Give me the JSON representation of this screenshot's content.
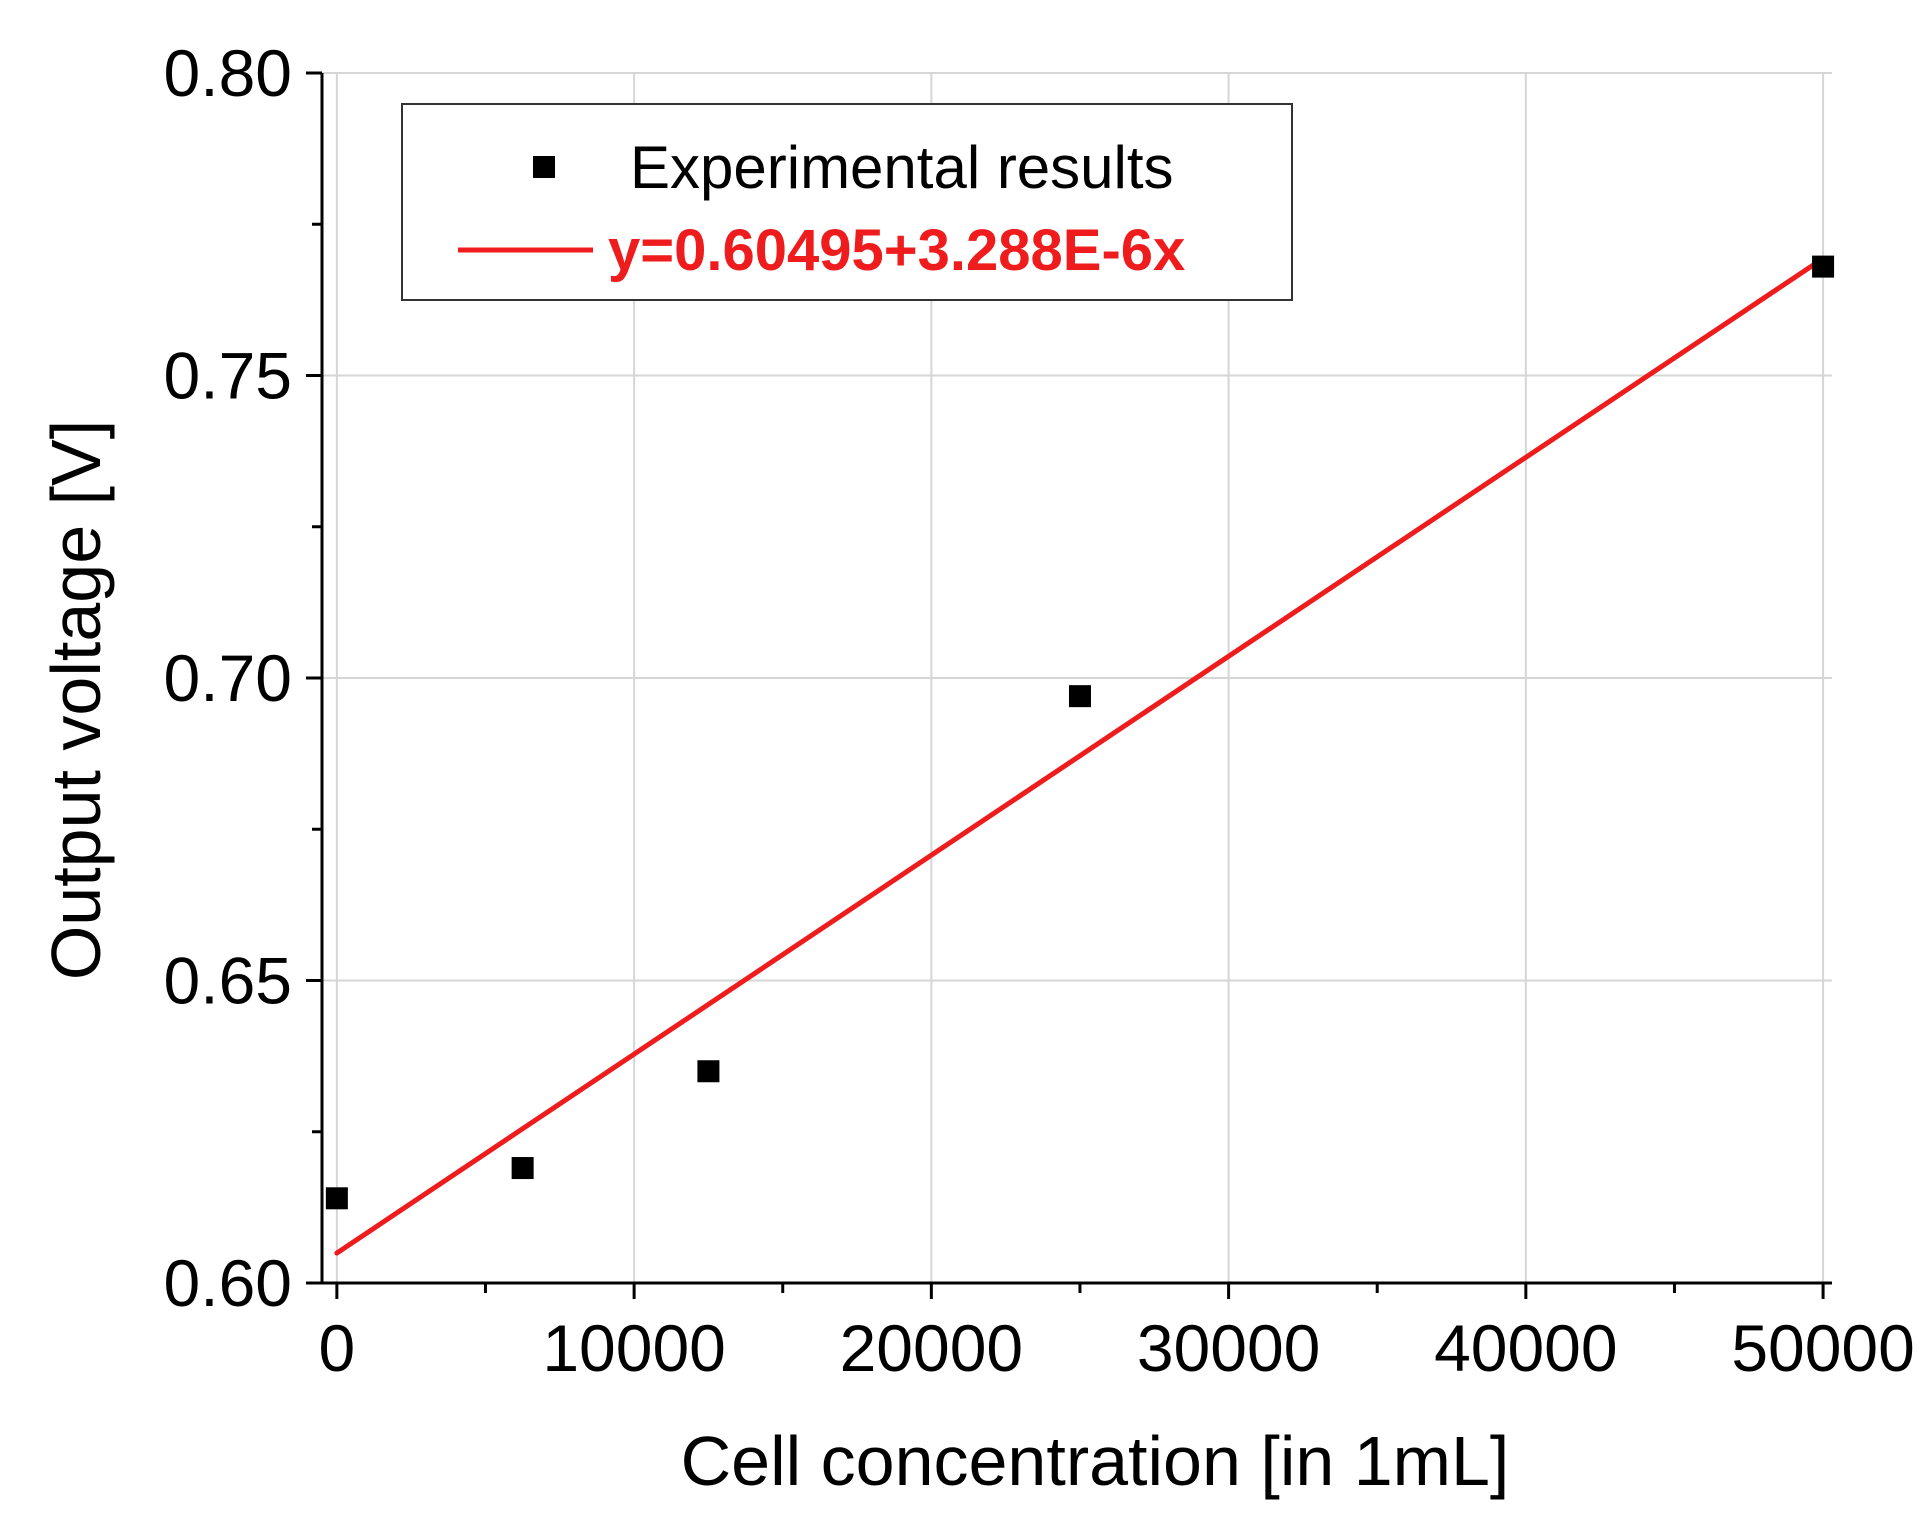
{
  "colors": {
    "background": "#ffffff",
    "axis": "#000000",
    "grid": "#d6d6d6",
    "marker": "#000000",
    "fit_line": "#ee1c1c",
    "legend_border": "#333333"
  },
  "chart_data": {
    "type": "scatter",
    "title": "",
    "xlabel": "Cell concentration [in 1mL]",
    "ylabel": "Output voltage [V]",
    "xlim": [
      -500,
      50300
    ],
    "ylim": [
      0.6,
      0.8
    ],
    "grid": true,
    "x_ticks": [
      0,
      10000,
      20000,
      30000,
      40000,
      50000
    ],
    "x_tick_labels": [
      "0",
      "10000",
      "20000",
      "30000",
      "40000",
      "50000"
    ],
    "x_minor_ticks": [
      5000,
      15000,
      25000,
      35000,
      45000
    ],
    "y_ticks": [
      0.6,
      0.65,
      0.7,
      0.75,
      0.8
    ],
    "y_tick_labels": [
      "0.60",
      "0.65",
      "0.70",
      "0.75",
      "0.80"
    ],
    "y_minor_ticks": [
      0.625,
      0.675,
      0.725,
      0.775
    ],
    "legend_position": "top-left",
    "series": [
      {
        "name": "Experimental results",
        "kind": "scatter",
        "marker": "square",
        "x": [
          0,
          6250,
          12500,
          25000,
          50000
        ],
        "y": [
          0.614,
          0.619,
          0.635,
          0.697,
          0.768
        ]
      },
      {
        "name": "y=0.60495+3.288E-6x",
        "kind": "line",
        "intercept": 0.60495,
        "slope": 3.288e-06,
        "x_range": [
          0,
          50000
        ]
      }
    ]
  }
}
